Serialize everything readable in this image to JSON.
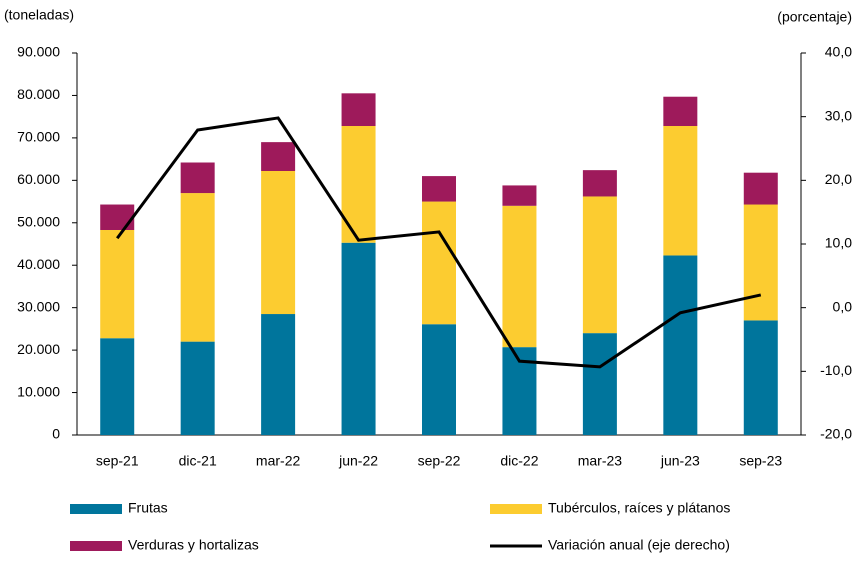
{
  "chart_data": {
    "type": "stacked-bar-line",
    "y_label": "(toneladas)",
    "y2_label": "(porcentaje)",
    "categories": [
      "sep-21",
      "dic-21",
      "mar-22",
      "jun-22",
      "sep-22",
      "dic-22",
      "mar-23",
      "jun-23",
      "sep-23"
    ],
    "series": [
      {
        "name": "Frutas",
        "color": "#00759c",
        "values": [
          22800,
          22000,
          28500,
          45300,
          26100,
          20700,
          24000,
          42300,
          27000
        ]
      },
      {
        "name": "Tubérculos, raíces y plátanos",
        "color": "#fccc30",
        "values": [
          25500,
          35000,
          33700,
          27500,
          28900,
          33300,
          32200,
          30500,
          27300
        ]
      },
      {
        "name": "Verduras y hortalizas",
        "color": "#9e1a5b",
        "values": [
          6000,
          7200,
          6800,
          7700,
          6000,
          4800,
          6200,
          6900,
          7500
        ]
      },
      {
        "name": "Variación anual (eje derecho)",
        "color": "#000000",
        "axis": "y2",
        "values": [
          10.9,
          27.9,
          29.8,
          10.6,
          11.9,
          -8.4,
          -9.3,
          -0.8,
          2.0
        ]
      }
    ],
    "ylim": [
      0,
      90000
    ],
    "yticks": [
      0,
      {
        "value": 10000,
        "label": "10.000"
      },
      {
        "value": 20000,
        "label": "20.000"
      },
      {
        "value": 30000,
        "label": "30.000"
      },
      {
        "value": 40000,
        "label": "40.000"
      },
      {
        "value": 50000,
        "label": "50.000"
      },
      {
        "value": 60000,
        "label": "60.000"
      },
      {
        "value": 70000,
        "label": "70.000"
      },
      {
        "value": 80000,
        "label": "80.000"
      },
      {
        "value": 90000,
        "label": "90.000"
      }
    ],
    "y2lim": [
      -20,
      40
    ],
    "y2ticks": [
      {
        "value": -20,
        "label": "-20,0"
      },
      {
        "value": -10,
        "label": "-10,0"
      },
      {
        "value": 0,
        "label": "0,0"
      },
      {
        "value": 10,
        "label": "10,0"
      },
      {
        "value": 20,
        "label": "20,0"
      },
      {
        "value": 30,
        "label": "30,0"
      },
      {
        "value": 40,
        "label": "40,0"
      }
    ]
  }
}
